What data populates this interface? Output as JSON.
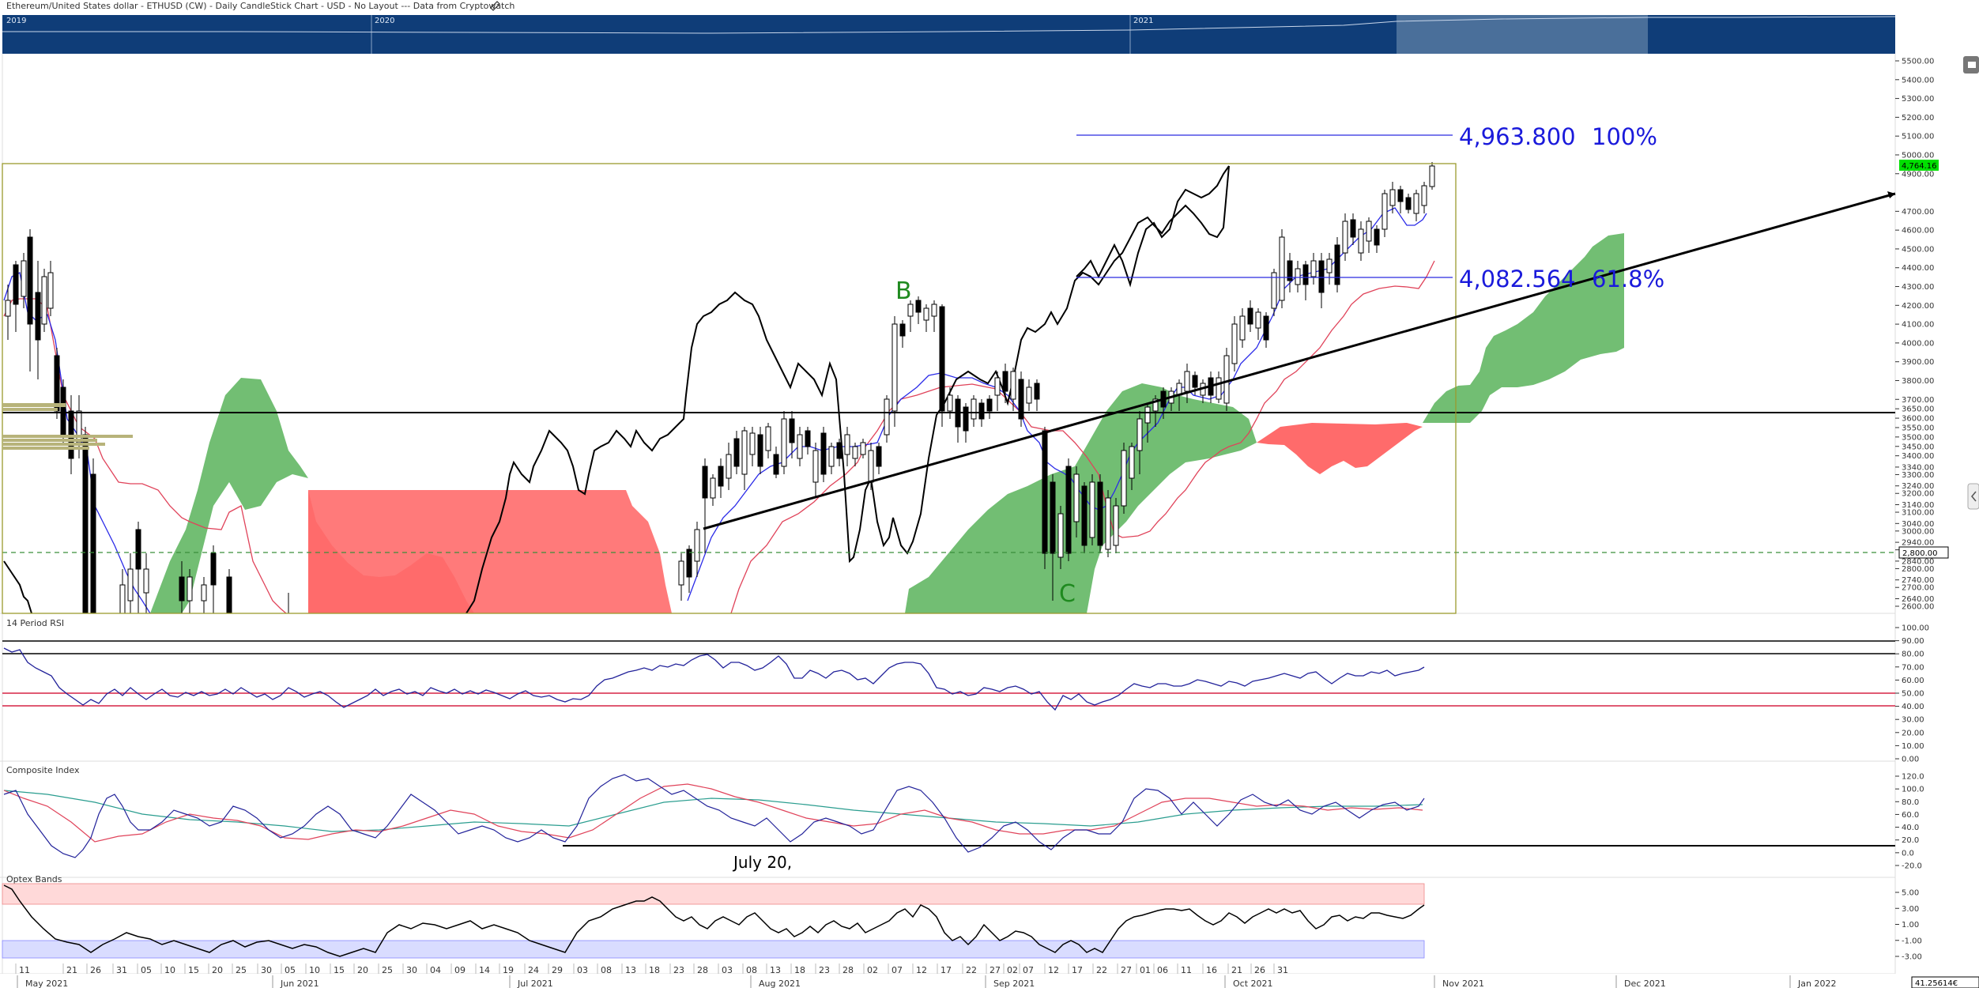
{
  "header": {
    "title": "Ethereum/United States dollar - ETHUSD (CW) - Daily CandleStick Chart - USD - No Layout --- Data from Cryptowatch"
  },
  "navigator": {
    "years": [
      "2019",
      "2020",
      "2021"
    ]
  },
  "price_panel": {
    "axis_ticks": [
      "5500.00",
      "5400.00",
      "5300.00",
      "5200.00",
      "5100.00",
      "5000.00",
      "4900.00",
      "4700.00",
      "4600.00",
      "4500.00",
      "4400.00",
      "4300.00",
      "4200.00",
      "4100.00",
      "4000.00",
      "3900.00",
      "3800.00",
      "3700.00",
      "3650.00",
      "3600.00",
      "3550.00",
      "3500.00",
      "3450.00",
      "3400.00",
      "3340.00",
      "3300.00",
      "3240.00",
      "3200.00",
      "3140.00",
      "3100.00",
      "3040.00",
      "3000.00",
      "2940.00",
      "2900.00",
      "2840.00",
      "2800.00",
      "2740.00",
      "2700.00",
      "2640.00",
      "2600.00"
    ],
    "last_price": "4,764.16",
    "cursor_price": "2,800.00",
    "fib_100_price": "4,963.800",
    "fib_100_pct": "100%",
    "fib_618_price": "4,082.564",
    "fib_618_pct": "61.8%",
    "label_b": "B",
    "label_c": "C",
    "colors": {
      "bull_cloud": "#59b35a",
      "bear_cloud": "#ff6b6b",
      "fib": "#1a1adb",
      "kijun": "#e0435a",
      "tenkan": "#2b2be8",
      "last_price_badge": "#00e000"
    }
  },
  "rsi_panel": {
    "title": "14 Period RSI",
    "axis_ticks": [
      "100.00",
      "90.00",
      "80.00",
      "70.00",
      "60.00",
      "50.00",
      "40.00",
      "30.00",
      "20.00",
      "10.00",
      "0.00"
    ]
  },
  "composite_panel": {
    "title": "Composite Index",
    "axis_ticks": [
      "120.0",
      "100.0",
      "80.0",
      "60.0",
      "40.0",
      "20.0",
      "0.0",
      "-20.0"
    ],
    "annotation": "July 20,"
  },
  "optex_panel": {
    "title": "Optex Bands",
    "axis_ticks": [
      "5.00",
      "3.00",
      "1.00",
      "-1.00",
      "-3.00"
    ]
  },
  "date_axis": {
    "days": [
      {
        "t": "11",
        "x": 20
      },
      {
        "t": "21",
        "x": 80
      },
      {
        "t": "26",
        "x": 110
      },
      {
        "t": "31",
        "x": 143
      },
      {
        "t": "05",
        "x": 174
      },
      {
        "t": "10",
        "x": 204
      },
      {
        "t": "15",
        "x": 234
      },
      {
        "t": "20",
        "x": 264
      },
      {
        "t": "25",
        "x": 294
      },
      {
        "t": "30",
        "x": 326
      },
      {
        "t": "05",
        "x": 356
      },
      {
        "t": "10",
        "x": 387
      },
      {
        "t": "15",
        "x": 418
      },
      {
        "t": "20",
        "x": 448
      },
      {
        "t": "25",
        "x": 479
      },
      {
        "t": "30",
        "x": 510
      },
      {
        "t": "04",
        "x": 540
      },
      {
        "t": "09",
        "x": 571
      },
      {
        "t": "14",
        "x": 602
      },
      {
        "t": "19",
        "x": 632
      },
      {
        "t": "24",
        "x": 664
      },
      {
        "t": "29",
        "x": 694
      },
      {
        "t": "03",
        "x": 726
      },
      {
        "t": "08",
        "x": 756
      },
      {
        "t": "13",
        "x": 787
      },
      {
        "t": "18",
        "x": 817
      },
      {
        "t": "23",
        "x": 848
      },
      {
        "t": "28",
        "x": 878
      },
      {
        "t": "03",
        "x": 909
      },
      {
        "t": "08",
        "x": 940
      },
      {
        "t": "13",
        "x": 970
      },
      {
        "t": "18",
        "x": 1001
      },
      {
        "t": "23",
        "x": 1032
      },
      {
        "t": "28",
        "x": 1062
      },
      {
        "t": "02",
        "x": 1093
      },
      {
        "t": "07",
        "x": 1124
      },
      {
        "t": "12",
        "x": 1155
      },
      {
        "t": "17",
        "x": 1186
      },
      {
        "t": "22",
        "x": 1218
      },
      {
        "t": "27",
        "x": 1248
      },
      {
        "t": "02",
        "x": 1270
      },
      {
        "t": "07",
        "x": 1290
      },
      {
        "t": "12",
        "x": 1322
      },
      {
        "t": "17",
        "x": 1352
      },
      {
        "t": "22",
        "x": 1383
      },
      {
        "t": "27",
        "x": 1414
      },
      {
        "t": "01",
        "x": 1438
      },
      {
        "t": "06",
        "x": 1460
      },
      {
        "t": "11",
        "x": 1490
      },
      {
        "t": "16",
        "x": 1522
      },
      {
        "t": "21",
        "x": 1554
      },
      {
        "t": "26",
        "x": 1583
      },
      {
        "t": "31",
        "x": 1612
      }
    ],
    "months": [
      "May 2021",
      "Jun 2021",
      "Jul 2021",
      "Aug 2021",
      "Sep 2021",
      "Oct 2021",
      "Nov 2021",
      "Dec 2021",
      "Jan 2022"
    ],
    "cursor_value": "41.25614€"
  },
  "chart_data": {
    "type": "candlestick",
    "title": "Ethereum/United States dollar - ETHUSD (CW) - Daily CandleStick Chart - USD",
    "ylim": [
      2560,
      5560
    ],
    "indicators": [
      "Ichimoku Cloud",
      "14 Period RSI",
      "Composite Index",
      "Optex Bands"
    ],
    "levels": {
      "horizontal_support": 3400,
      "fib_100": 4963.8,
      "fib_618": 4082.564,
      "last": 4764.16
    },
    "annotations": [
      "B",
      "C",
      "July 20,"
    ]
  }
}
